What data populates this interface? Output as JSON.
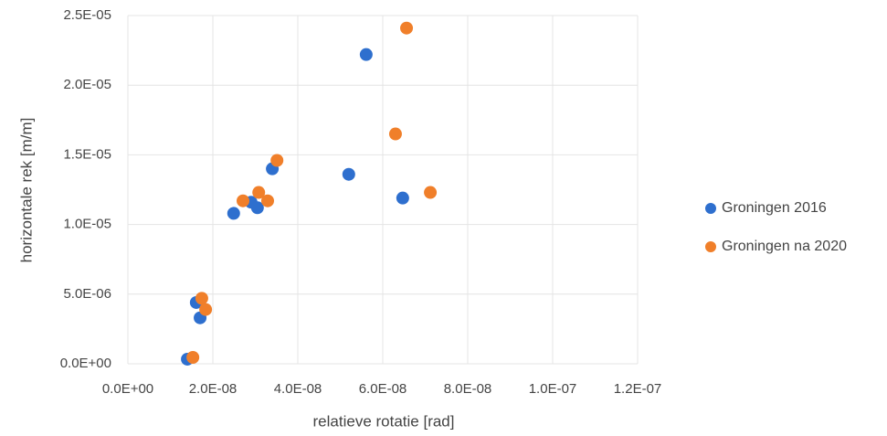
{
  "chart_data": {
    "type": "scatter",
    "xlabel": "relatieve rotatie [rad]",
    "ylabel": "horizontale rek [m/m]",
    "xlim": [
      0,
      1.2e-07
    ],
    "ylim": [
      0,
      2.5e-05
    ],
    "xticks": [
      {
        "value": 0,
        "label": "0.0E+00"
      },
      {
        "value": 2e-08,
        "label": "2.0E-08"
      },
      {
        "value": 4e-08,
        "label": "4.0E-08"
      },
      {
        "value": 6e-08,
        "label": "6.0E-08"
      },
      {
        "value": 8e-08,
        "label": "8.0E-08"
      },
      {
        "value": 1e-07,
        "label": "1.0E-07"
      },
      {
        "value": 1.2e-07,
        "label": "1.2E-07"
      }
    ],
    "yticks": [
      {
        "value": 0,
        "label": "0.0E+00"
      },
      {
        "value": 5e-06,
        "label": "5.0E-06"
      },
      {
        "value": 1e-05,
        "label": "1.0E-05"
      },
      {
        "value": 1.5e-05,
        "label": "1.5E-05"
      },
      {
        "value": 2e-05,
        "label": "2.0E-05"
      },
      {
        "value": 2.5e-05,
        "label": "2.5E-05"
      }
    ],
    "grid": true,
    "legend": "right",
    "series": [
      {
        "name": "Groningen 2016",
        "color": "#2e6fce",
        "x": [
          1.4e-08,
          1.61e-08,
          1.7e-08,
          2.49e-08,
          2.9e-08,
          3.05e-08,
          3.4e-08,
          5.2e-08,
          5.61e-08,
          6.47e-08
        ],
        "values": [
          3.3e-07,
          4.4e-06,
          3.3e-06,
          1.08e-05,
          1.16e-05,
          1.12e-05,
          1.4e-05,
          1.36e-05,
          2.22e-05,
          1.19e-05
        ]
      },
      {
        "name": "Groningen na 2020",
        "color": "#f07f2a",
        "x": [
          1.53e-08,
          1.74e-08,
          1.83e-08,
          2.71e-08,
          3.08e-08,
          3.29e-08,
          3.51e-08,
          6.3e-08,
          6.56e-08,
          7.12e-08
        ],
        "values": [
          4.6e-07,
          4.7e-06,
          3.9e-06,
          1.17e-05,
          1.23e-05,
          1.17e-05,
          1.46e-05,
          1.65e-05,
          2.41e-05,
          1.23e-05
        ]
      }
    ]
  }
}
